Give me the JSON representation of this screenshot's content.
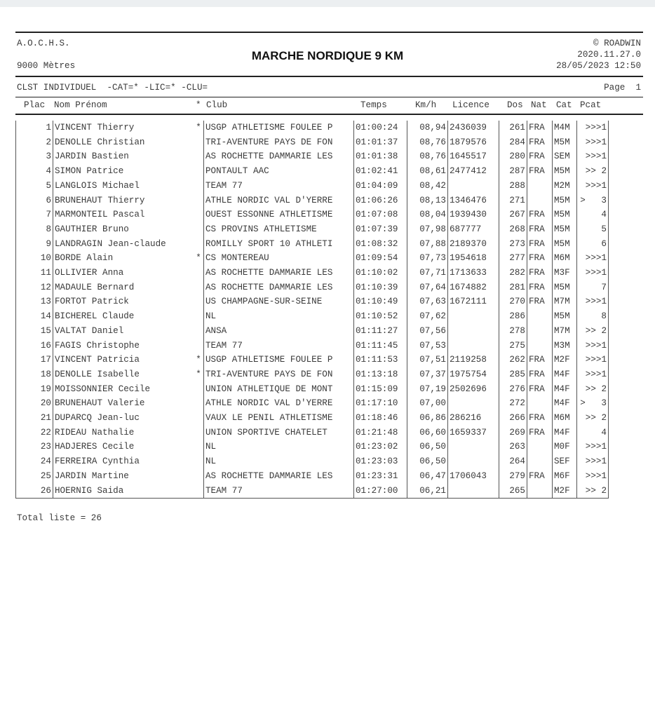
{
  "header": {
    "org": "A.O.C.H.S.",
    "distance": "9000 Mètres",
    "title": "MARCHE NORDIQUE 9 KM",
    "copyright": "© ROADWIN",
    "version": "2020.11.27.0",
    "datetime": "28/05/2023 12:50"
  },
  "subheader": {
    "filter": "CLST INDIVIDUEL  -CAT=* -LIC=* -CLU=",
    "page": "Page  1"
  },
  "columns": {
    "plac": "Plac",
    "name": "Nom Prénom",
    "star": "*",
    "club": "Club",
    "temps": "Temps",
    "kmh": "Km/h",
    "licence": "Licence",
    "dos": "Dos",
    "nat": "Nat",
    "cat": "Cat",
    "pcat": "Pcat"
  },
  "rows": [
    [
      "1",
      "VINCENT Thierry",
      "*",
      "USGP ATHLETISME FOULEE P",
      "01:00:24",
      "08,94",
      "2436039",
      "261",
      "FRA",
      "M4M",
      ">>>1"
    ],
    [
      "2",
      "DENOLLE Christian",
      "",
      "TRI-AVENTURE PAYS DE FON",
      "01:01:37",
      "08,76",
      "1879576",
      "284",
      "FRA",
      "M5M",
      ">>>1"
    ],
    [
      "3",
      "JARDIN Bastien",
      "",
      "AS ROCHETTE DAMMARIE LES",
      "01:01:38",
      "08,76",
      "1645517",
      "280",
      "FRA",
      "SEM",
      ">>>1"
    ],
    [
      "4",
      "SIMON Patrice",
      "",
      "PONTAULT AAC",
      "01:02:41",
      "08,61",
      "2477412",
      "287",
      "FRA",
      "M5M",
      ">> 2"
    ],
    [
      "5",
      "LANGLOIS Michael",
      "",
      "TEAM 77",
      "01:04:09",
      "08,42",
      "",
      "288",
      "",
      "M2M",
      ">>>1"
    ],
    [
      "6",
      "BRUNEHAUT Thierry",
      "",
      "ATHLE NORDIC VAL D'YERRE",
      "01:06:26",
      "08,13",
      "1346476",
      "271",
      "",
      "M5M",
      ">   3"
    ],
    [
      "7",
      "MARMONTEIL Pascal",
      "",
      "OUEST ESSONNE ATHLETISME",
      "01:07:08",
      "08,04",
      "1939430",
      "267",
      "FRA",
      "M5M",
      "    4"
    ],
    [
      "8",
      "GAUTHIER Bruno",
      "",
      "CS PROVINS ATHLETISME",
      "01:07:39",
      "07,98",
      "687777",
      "268",
      "FRA",
      "M5M",
      "    5"
    ],
    [
      "9",
      "LANDRAGIN Jean-claude",
      "",
      "ROMILLY SPORT 10 ATHLETI",
      "01:08:32",
      "07,88",
      "2189370",
      "273",
      "FRA",
      "M5M",
      "    6"
    ],
    [
      "10",
      "BORDE Alain",
      "*",
      "CS MONTEREAU",
      "01:09:54",
      "07,73",
      "1954618",
      "277",
      "FRA",
      "M6M",
      ">>>1"
    ],
    [
      "11",
      "OLLIVIER Anna",
      "",
      "AS ROCHETTE DAMMARIE LES",
      "01:10:02",
      "07,71",
      "1713633",
      "282",
      "FRA",
      "M3F",
      ">>>1"
    ],
    [
      "12",
      "MADAULE Bernard",
      "",
      "AS ROCHETTE DAMMARIE LES",
      "01:10:39",
      "07,64",
      "1674882",
      "281",
      "FRA",
      "M5M",
      "    7"
    ],
    [
      "13",
      "FORTOT Patrick",
      "",
      "US CHAMPAGNE-SUR-SEINE",
      "01:10:49",
      "07,63",
      "1672111",
      "270",
      "FRA",
      "M7M",
      ">>>1"
    ],
    [
      "14",
      "BICHEREL Claude",
      "",
      "NL",
      "01:10:52",
      "07,62",
      "",
      "286",
      "",
      "M5M",
      "    8"
    ],
    [
      "15",
      "VALTAT Daniel",
      "",
      "ANSA",
      "01:11:27",
      "07,56",
      "",
      "278",
      "",
      "M7M",
      ">> 2"
    ],
    [
      "16",
      "FAGIS Christophe",
      "",
      "TEAM 77",
      "01:11:45",
      "07,53",
      "",
      "275",
      "",
      "M3M",
      ">>>1"
    ],
    [
      "17",
      "VINCENT Patricia",
      "*",
      "USGP ATHLETISME FOULEE P",
      "01:11:53",
      "07,51",
      "2119258",
      "262",
      "FRA",
      "M2F",
      ">>>1"
    ],
    [
      "18",
      "DENOLLE Isabelle",
      "*",
      "TRI-AVENTURE PAYS DE FON",
      "01:13:18",
      "07,37",
      "1975754",
      "285",
      "FRA",
      "M4F",
      ">>>1"
    ],
    [
      "19",
      "MOISSONNIER Cecile",
      "",
      "UNION ATHLETIQUE DE MONT",
      "01:15:09",
      "07,19",
      "2502696",
      "276",
      "FRA",
      "M4F",
      ">> 2"
    ],
    [
      "20",
      "BRUNEHAUT Valerie",
      "",
      "ATHLE NORDIC VAL D'YERRE",
      "01:17:10",
      "07,00",
      "",
      "272",
      "",
      "M4F",
      ">   3"
    ],
    [
      "21",
      "DUPARCQ Jean-luc",
      "",
      "VAUX LE PENIL ATHLETISME",
      "01:18:46",
      "06,86",
      "286216",
      "266",
      "FRA",
      "M6M",
      ">> 2"
    ],
    [
      "22",
      "RIDEAU Nathalie",
      "",
      "UNION SPORTIVE CHATELET",
      "01:21:48",
      "06,60",
      "1659337",
      "269",
      "FRA",
      "M4F",
      "    4"
    ],
    [
      "23",
      "HADJERES Cecile",
      "",
      "NL",
      "01:23:02",
      "06,50",
      "",
      "263",
      "",
      "M0F",
      ">>>1"
    ],
    [
      "24",
      "FERREIRA Cynthia",
      "",
      "NL",
      "01:23:03",
      "06,50",
      "",
      "264",
      "",
      "SEF",
      ">>>1"
    ],
    [
      "25",
      "JARDIN Martine",
      "",
      "AS ROCHETTE DAMMARIE LES",
      "01:23:31",
      "06,47",
      "1706043",
      "279",
      "FRA",
      "M6F",
      ">>>1"
    ],
    [
      "26",
      "HOERNIG Saida",
      "",
      "TEAM 77",
      "01:27:00",
      "06,21",
      "",
      "265",
      "",
      "M2F",
      ">> 2"
    ]
  ],
  "footer": {
    "total": "Total liste = 26"
  }
}
